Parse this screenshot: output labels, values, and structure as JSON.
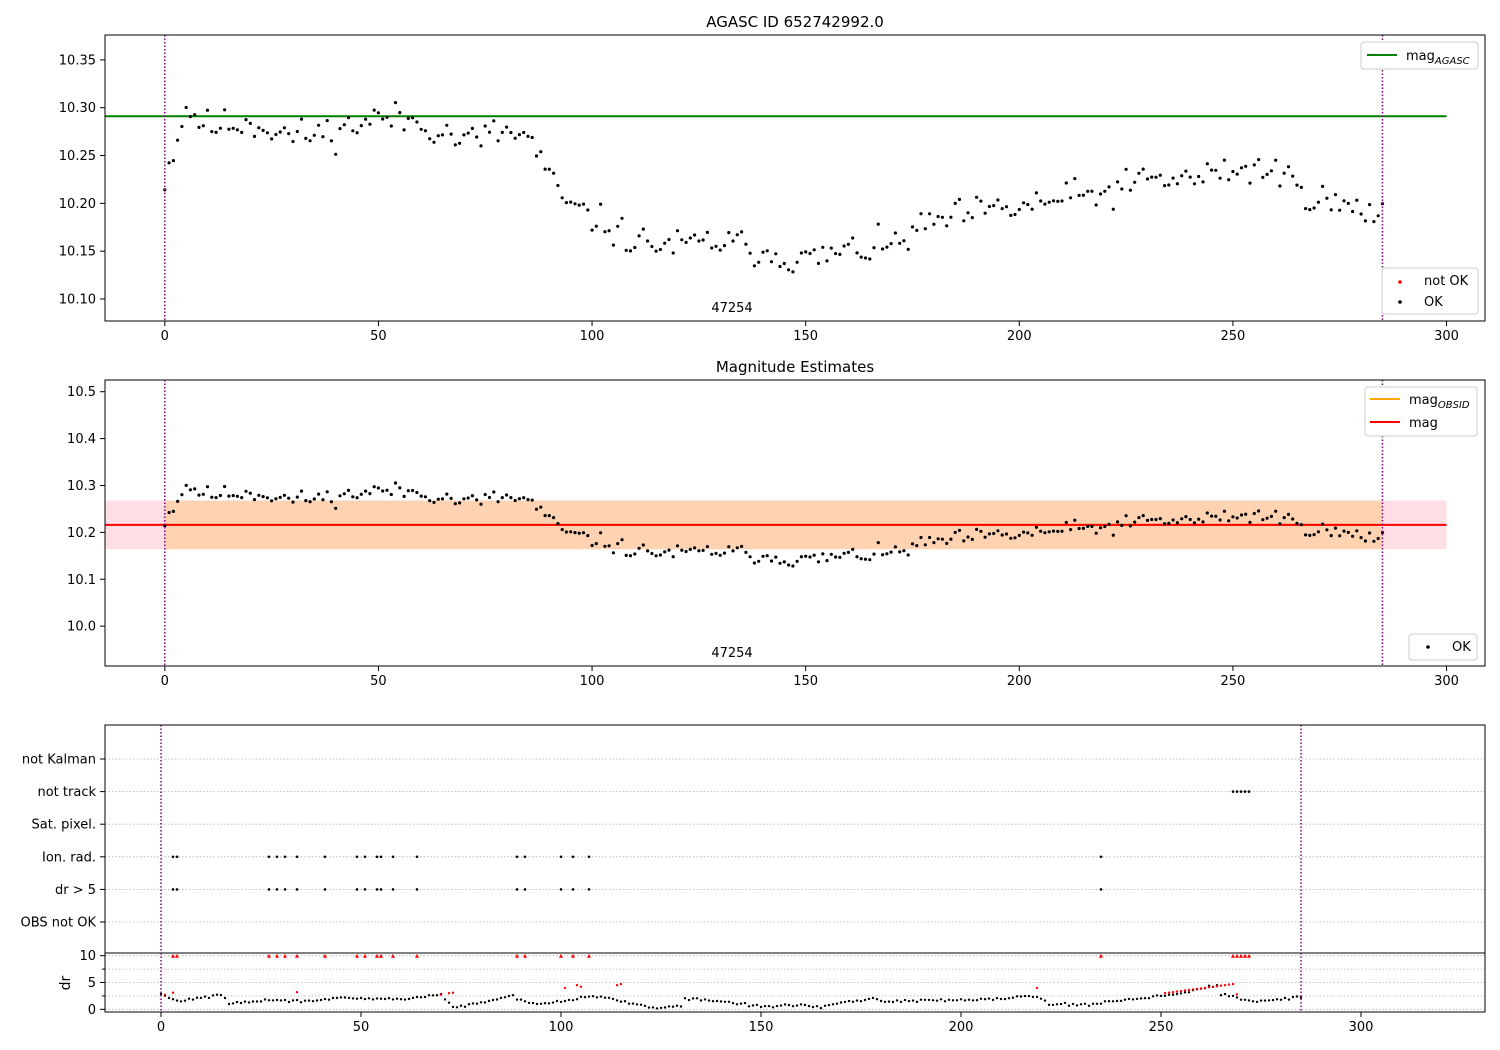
{
  "chart_data": [
    {
      "type": "scatter",
      "title": "AGASC ID 652742992.0",
      "xlim": [
        -14,
        309
      ],
      "ylim": [
        10.077,
        10.376
      ],
      "xticks": [
        0,
        50,
        100,
        150,
        200,
        250,
        300
      ],
      "yticks": [
        10.1,
        10.15,
        10.2,
        10.25,
        10.3,
        10.35
      ],
      "ytick_labels": [
        "10.10",
        "10.15",
        "10.20",
        "10.25",
        "10.30",
        "10.35"
      ],
      "grid": false,
      "vlines": [
        0,
        285
      ],
      "obsid_label": {
        "text": "47254",
        "x": 142.5
      },
      "mag_agasc": {
        "value": 10.291,
        "x_range": [
          -14,
          300
        ],
        "color": "#008000"
      },
      "legend_upper": [
        {
          "label": "mag",
          "sub": "AGASC",
          "color": "#008000"
        }
      ],
      "legend_lower": [
        {
          "label": "not OK",
          "color": "#ff0000"
        },
        {
          "label": "OK",
          "color": "#000000"
        }
      ],
      "series": [
        {
          "name": "OK",
          "color": "#000000",
          "anchors": [
            [
              0,
              10.225
            ],
            [
              5,
              10.3
            ],
            [
              10,
              10.28
            ],
            [
              20,
              10.285
            ],
            [
              30,
              10.27
            ],
            [
              40,
              10.275
            ],
            [
              50,
              10.29
            ],
            [
              60,
              10.285
            ],
            [
              70,
              10.265
            ],
            [
              80,
              10.275
            ],
            [
              86,
              10.265
            ],
            [
              90,
              10.225
            ],
            [
              95,
              10.195
            ],
            [
              100,
              10.185
            ],
            [
              110,
              10.16
            ],
            [
              120,
              10.155
            ],
            [
              130,
              10.16
            ],
            [
              140,
              10.15
            ],
            [
              150,
              10.14
            ],
            [
              160,
              10.15
            ],
            [
              170,
              10.155
            ],
            [
              180,
              10.18
            ],
            [
              190,
              10.19
            ],
            [
              200,
              10.195
            ],
            [
              210,
              10.205
            ],
            [
              220,
              10.21
            ],
            [
              230,
              10.225
            ],
            [
              240,
              10.225
            ],
            [
              250,
              10.235
            ],
            [
              260,
              10.235
            ],
            [
              266,
              10.215
            ],
            [
              270,
              10.205
            ],
            [
              280,
              10.19
            ],
            [
              285,
              10.19
            ]
          ],
          "scatter": 0.026,
          "seed": 11
        }
      ]
    },
    {
      "type": "scatter",
      "title": "Magnitude Estimates",
      "xlim": [
        -14,
        309
      ],
      "ylim": [
        9.915,
        10.525
      ],
      "xticks": [
        0,
        50,
        100,
        150,
        200,
        250,
        300
      ],
      "yticks": [
        10.0,
        10.1,
        10.2,
        10.3,
        10.4,
        10.5
      ],
      "ytick_labels": [
        "10.0",
        "10.1",
        "10.2",
        "10.3",
        "10.4",
        "10.5"
      ],
      "grid": false,
      "vlines": [
        0,
        285
      ],
      "obsid_label": {
        "text": "47254",
        "x": 142.5
      },
      "mag": {
        "value": 10.216,
        "x_range": [
          -14,
          300
        ],
        "band": [
          10.164,
          10.268
        ],
        "color": "#ff0000"
      },
      "mag_obsid": {
        "value": 10.216,
        "band": [
          10.164,
          10.268
        ],
        "x_range": [
          0,
          285
        ],
        "color": "#ffa500"
      },
      "legend_upper": [
        {
          "label": "mag",
          "sub": "OBSID",
          "color": "#ffa500"
        },
        {
          "label": "mag",
          "sub": "",
          "color": "#ff0000"
        }
      ],
      "legend_lower": [
        {
          "label": "OK",
          "color": "#000000"
        }
      ],
      "series": [
        {
          "name": "OK",
          "color": "#000000",
          "anchors": [
            [
              0,
              10.225
            ],
            [
              5,
              10.3
            ],
            [
              10,
              10.28
            ],
            [
              20,
              10.285
            ],
            [
              30,
              10.27
            ],
            [
              40,
              10.275
            ],
            [
              50,
              10.29
            ],
            [
              60,
              10.285
            ],
            [
              70,
              10.265
            ],
            [
              80,
              10.275
            ],
            [
              86,
              10.265
            ],
            [
              90,
              10.225
            ],
            [
              95,
              10.195
            ],
            [
              100,
              10.185
            ],
            [
              110,
              10.16
            ],
            [
              120,
              10.155
            ],
            [
              130,
              10.16
            ],
            [
              140,
              10.15
            ],
            [
              150,
              10.14
            ],
            [
              160,
              10.15
            ],
            [
              170,
              10.155
            ],
            [
              180,
              10.18
            ],
            [
              190,
              10.19
            ],
            [
              200,
              10.195
            ],
            [
              210,
              10.205
            ],
            [
              220,
              10.21
            ],
            [
              230,
              10.225
            ],
            [
              240,
              10.225
            ],
            [
              250,
              10.235
            ],
            [
              260,
              10.235
            ],
            [
              266,
              10.215
            ],
            [
              270,
              10.205
            ],
            [
              280,
              10.19
            ],
            [
              285,
              10.19
            ]
          ],
          "scatter": 0.026,
          "seed": 11
        }
      ]
    },
    {
      "type": "scatter",
      "title": "",
      "xlim": [
        -14,
        331
      ],
      "xticks": [
        0,
        50,
        100,
        150,
        200,
        250,
        300
      ],
      "vlines": [
        0,
        285
      ],
      "flag_rows": [
        "not Kalman",
        "not track",
        "Sat. pixel.",
        "Ion. rad.",
        "dr > 5",
        "OBS not OK"
      ],
      "flags": {
        "not Kalman": [],
        "not track": [
          268,
          269,
          270,
          271,
          272
        ],
        "Sat. pixel.": [],
        "Ion. rad.": [
          3,
          4,
          27,
          29,
          31,
          34,
          41,
          49,
          51,
          54,
          55,
          58,
          64,
          89,
          91,
          100,
          103,
          107,
          235
        ],
        "dr > 5": [
          3,
          4,
          27,
          29,
          31,
          34,
          41,
          49,
          51,
          54,
          55,
          58,
          64,
          89,
          91,
          100,
          103,
          107,
          235
        ],
        "OBS not OK": []
      }
    },
    {
      "type": "scatter",
      "title": "",
      "ylabel": "dr",
      "xlim": [
        -14,
        331
      ],
      "ylim": [
        -0.5,
        10.5
      ],
      "yticks": [
        0,
        5,
        10
      ],
      "ytick_labels": [
        "0",
        "5",
        "10"
      ],
      "minor_yticks": [
        2.5,
        7.5
      ],
      "xticks": [
        0,
        50,
        100,
        150,
        200,
        250,
        300
      ],
      "xtick_labels": [
        "0",
        "50",
        "100",
        "150",
        "200",
        "250",
        "300"
      ],
      "grid": true,
      "vlines": [
        0,
        285
      ],
      "series": [
        {
          "name": "OK",
          "color": "#000000",
          "anchors": [
            [
              0,
              2.8
            ],
            [
              4,
              1.5
            ],
            [
              10,
              2.2
            ],
            [
              15,
              2.6
            ],
            [
              17,
              1.2
            ],
            [
              22,
              1.3
            ],
            [
              26,
              1.7
            ],
            [
              35,
              1.5
            ],
            [
              42,
              2.0
            ],
            [
              60,
              1.9
            ],
            [
              65,
              2.3
            ],
            [
              70,
              2.8
            ],
            [
              73,
              0.3
            ],
            [
              80,
              1.2
            ],
            [
              88,
              2.5
            ],
            [
              92,
              1.0
            ],
            [
              100,
              1.5
            ],
            [
              106,
              2.4
            ],
            [
              112,
              2.2
            ],
            [
              115,
              1.4
            ],
            [
              120,
              0.8
            ],
            [
              124,
              0.3
            ],
            [
              130,
              0.5
            ],
            [
              131,
              2.0
            ],
            [
              140,
              1.5
            ],
            [
              150,
              0.5
            ],
            [
              160,
              0.8
            ],
            [
              165,
              0.5
            ],
            [
              178,
              2.0
            ],
            [
              182,
              1.5
            ],
            [
              190,
              1.6
            ],
            [
              210,
              2.0
            ],
            [
              219,
              2.6
            ],
            [
              222,
              1.0
            ],
            [
              232,
              0.8
            ],
            [
              236,
              1.4
            ],
            [
              242,
              1.8
            ],
            [
              250,
              2.6
            ],
            [
              255,
              2.9
            ],
            [
              264,
              4.5
            ],
            [
              265,
              2.8
            ],
            [
              273,
              1.4
            ],
            [
              285,
              2.3
            ]
          ],
          "scatter": 0.35,
          "seed": 29
        },
        {
          "name": "not OK",
          "color": "#ff0000",
          "marker": "dot",
          "points": [
            [
              1,
              2.7
            ],
            [
              3,
              3.1
            ],
            [
              34,
              3.2
            ],
            [
              70,
              2.7
            ],
            [
              72,
              3.0
            ],
            [
              73,
              3.1
            ],
            [
              101,
              4.0
            ],
            [
              104,
              4.5
            ],
            [
              105,
              4.2
            ],
            [
              114,
              4.5
            ],
            [
              115,
              4.7
            ],
            [
              219,
              4.0
            ],
            [
              251,
              3.0
            ],
            [
              252,
              3.1
            ],
            [
              253,
              3.2
            ],
            [
              254,
              3.3
            ],
            [
              255,
              3.4
            ],
            [
              256,
              3.5
            ],
            [
              257,
              3.6
            ],
            [
              258,
              3.7
            ],
            [
              259,
              3.8
            ],
            [
              260,
              3.9
            ],
            [
              261,
              4.0
            ],
            [
              262,
              4.1
            ],
            [
              263,
              4.2
            ],
            [
              264,
              4.3
            ],
            [
              265,
              4.4
            ],
            [
              266,
              4.5
            ],
            [
              267,
              4.6
            ],
            [
              268,
              4.7
            ],
            [
              269,
              2.8
            ]
          ]
        },
        {
          "name": "not OK (capped)",
          "color": "#ff0000",
          "marker": "triangle",
          "y": 10,
          "x": [
            3,
            4,
            27,
            29,
            31,
            34,
            41,
            49,
            51,
            54,
            55,
            58,
            64,
            89,
            91,
            100,
            103,
            107,
            235,
            268,
            269,
            270,
            271,
            272
          ]
        }
      ]
    }
  ]
}
